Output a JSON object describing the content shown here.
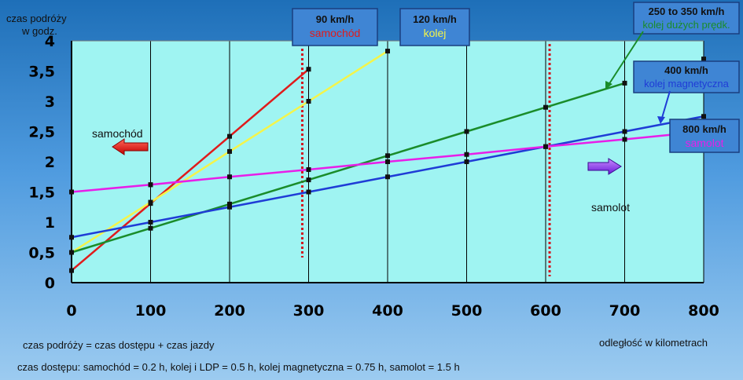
{
  "colors": {
    "plot_bg": "#9ff4f2",
    "samochod": "#e01b1b",
    "kolej": "#f4f44a",
    "kolej_duzych": "#1a8c2a",
    "kolej_magnetyczna": "#1f3cd6",
    "samolot": "#e81ee8",
    "box_bg": "#3f85d4",
    "dotted": "#d4141e"
  },
  "chart_data": {
    "type": "line",
    "ylabel": "czas podróży\nw godz.",
    "xlabel": "odległość w kilometrach",
    "xlim": [
      0,
      800
    ],
    "ylim": [
      0,
      4
    ],
    "xticks": [
      "0",
      "100",
      "200",
      "300",
      "400",
      "500",
      "600",
      "700",
      "800"
    ],
    "yticks": [
      "0",
      "0,5",
      "1",
      "1,5",
      "2",
      "2,5",
      "3",
      "3,5",
      "4"
    ],
    "grid": "vertical",
    "series": [
      {
        "key": "samochod",
        "x": [
          0,
          100,
          200,
          300
        ],
        "y": [
          0.2,
          1.31,
          2.42,
          3.53
        ]
      },
      {
        "key": "kolej",
        "x": [
          0,
          100,
          200,
          300,
          400
        ],
        "y": [
          0.5,
          1.33,
          2.17,
          3.0,
          3.83
        ]
      },
      {
        "key": "kolej_duzych",
        "x": [
          0,
          100,
          200,
          300,
          400,
          500,
          600,
          700
        ],
        "y": [
          0.5,
          0.9,
          1.3,
          1.7,
          2.1,
          2.5,
          2.9,
          3.3
        ]
      },
      {
        "key": "kolej_magnetyczna",
        "x": [
          0,
          100,
          200,
          300,
          400,
          500,
          600,
          700,
          800
        ],
        "y": [
          0.75,
          1.0,
          1.25,
          1.5,
          1.75,
          2.0,
          2.25,
          2.5,
          2.75
        ]
      },
      {
        "key": "samolot",
        "x": [
          0,
          100,
          200,
          300,
          400,
          500,
          600,
          700,
          800
        ],
        "y": [
          1.5,
          1.62,
          1.75,
          1.87,
          2.0,
          2.12,
          2.25,
          2.37,
          2.5
        ]
      }
    ],
    "extra_markers": [
      {
        "x": 100,
        "y": 1.62
      },
      {
        "x": 800,
        "y": 3.7
      }
    ],
    "dotted_lines_x": [
      292,
      605
    ],
    "annotations": {
      "box_90": {
        "speed": "90 km/h",
        "mode": "samochód"
      },
      "box_120": {
        "speed": "120 km/h",
        "mode": "kolej"
      },
      "box_250": {
        "speed": "250 to 350 km/h",
        "mode": "kolej dużych prędk."
      },
      "box_400": {
        "speed": "400 km/h",
        "mode": "kolej magnetyczna"
      },
      "box_800": {
        "speed": "800 km/h",
        "mode": "samolot"
      },
      "arrow_left_label": "samochód",
      "arrow_right_label": "samolot"
    }
  },
  "notes": {
    "line1": "czas podróży = czas dostępu + czas jazdy",
    "line2": "czas dostępu: samochód = 0.2 h, kolej i LDP = 0.5 h, kolej magnetyczna = 0.75 h, samolot = 1.5 h"
  }
}
